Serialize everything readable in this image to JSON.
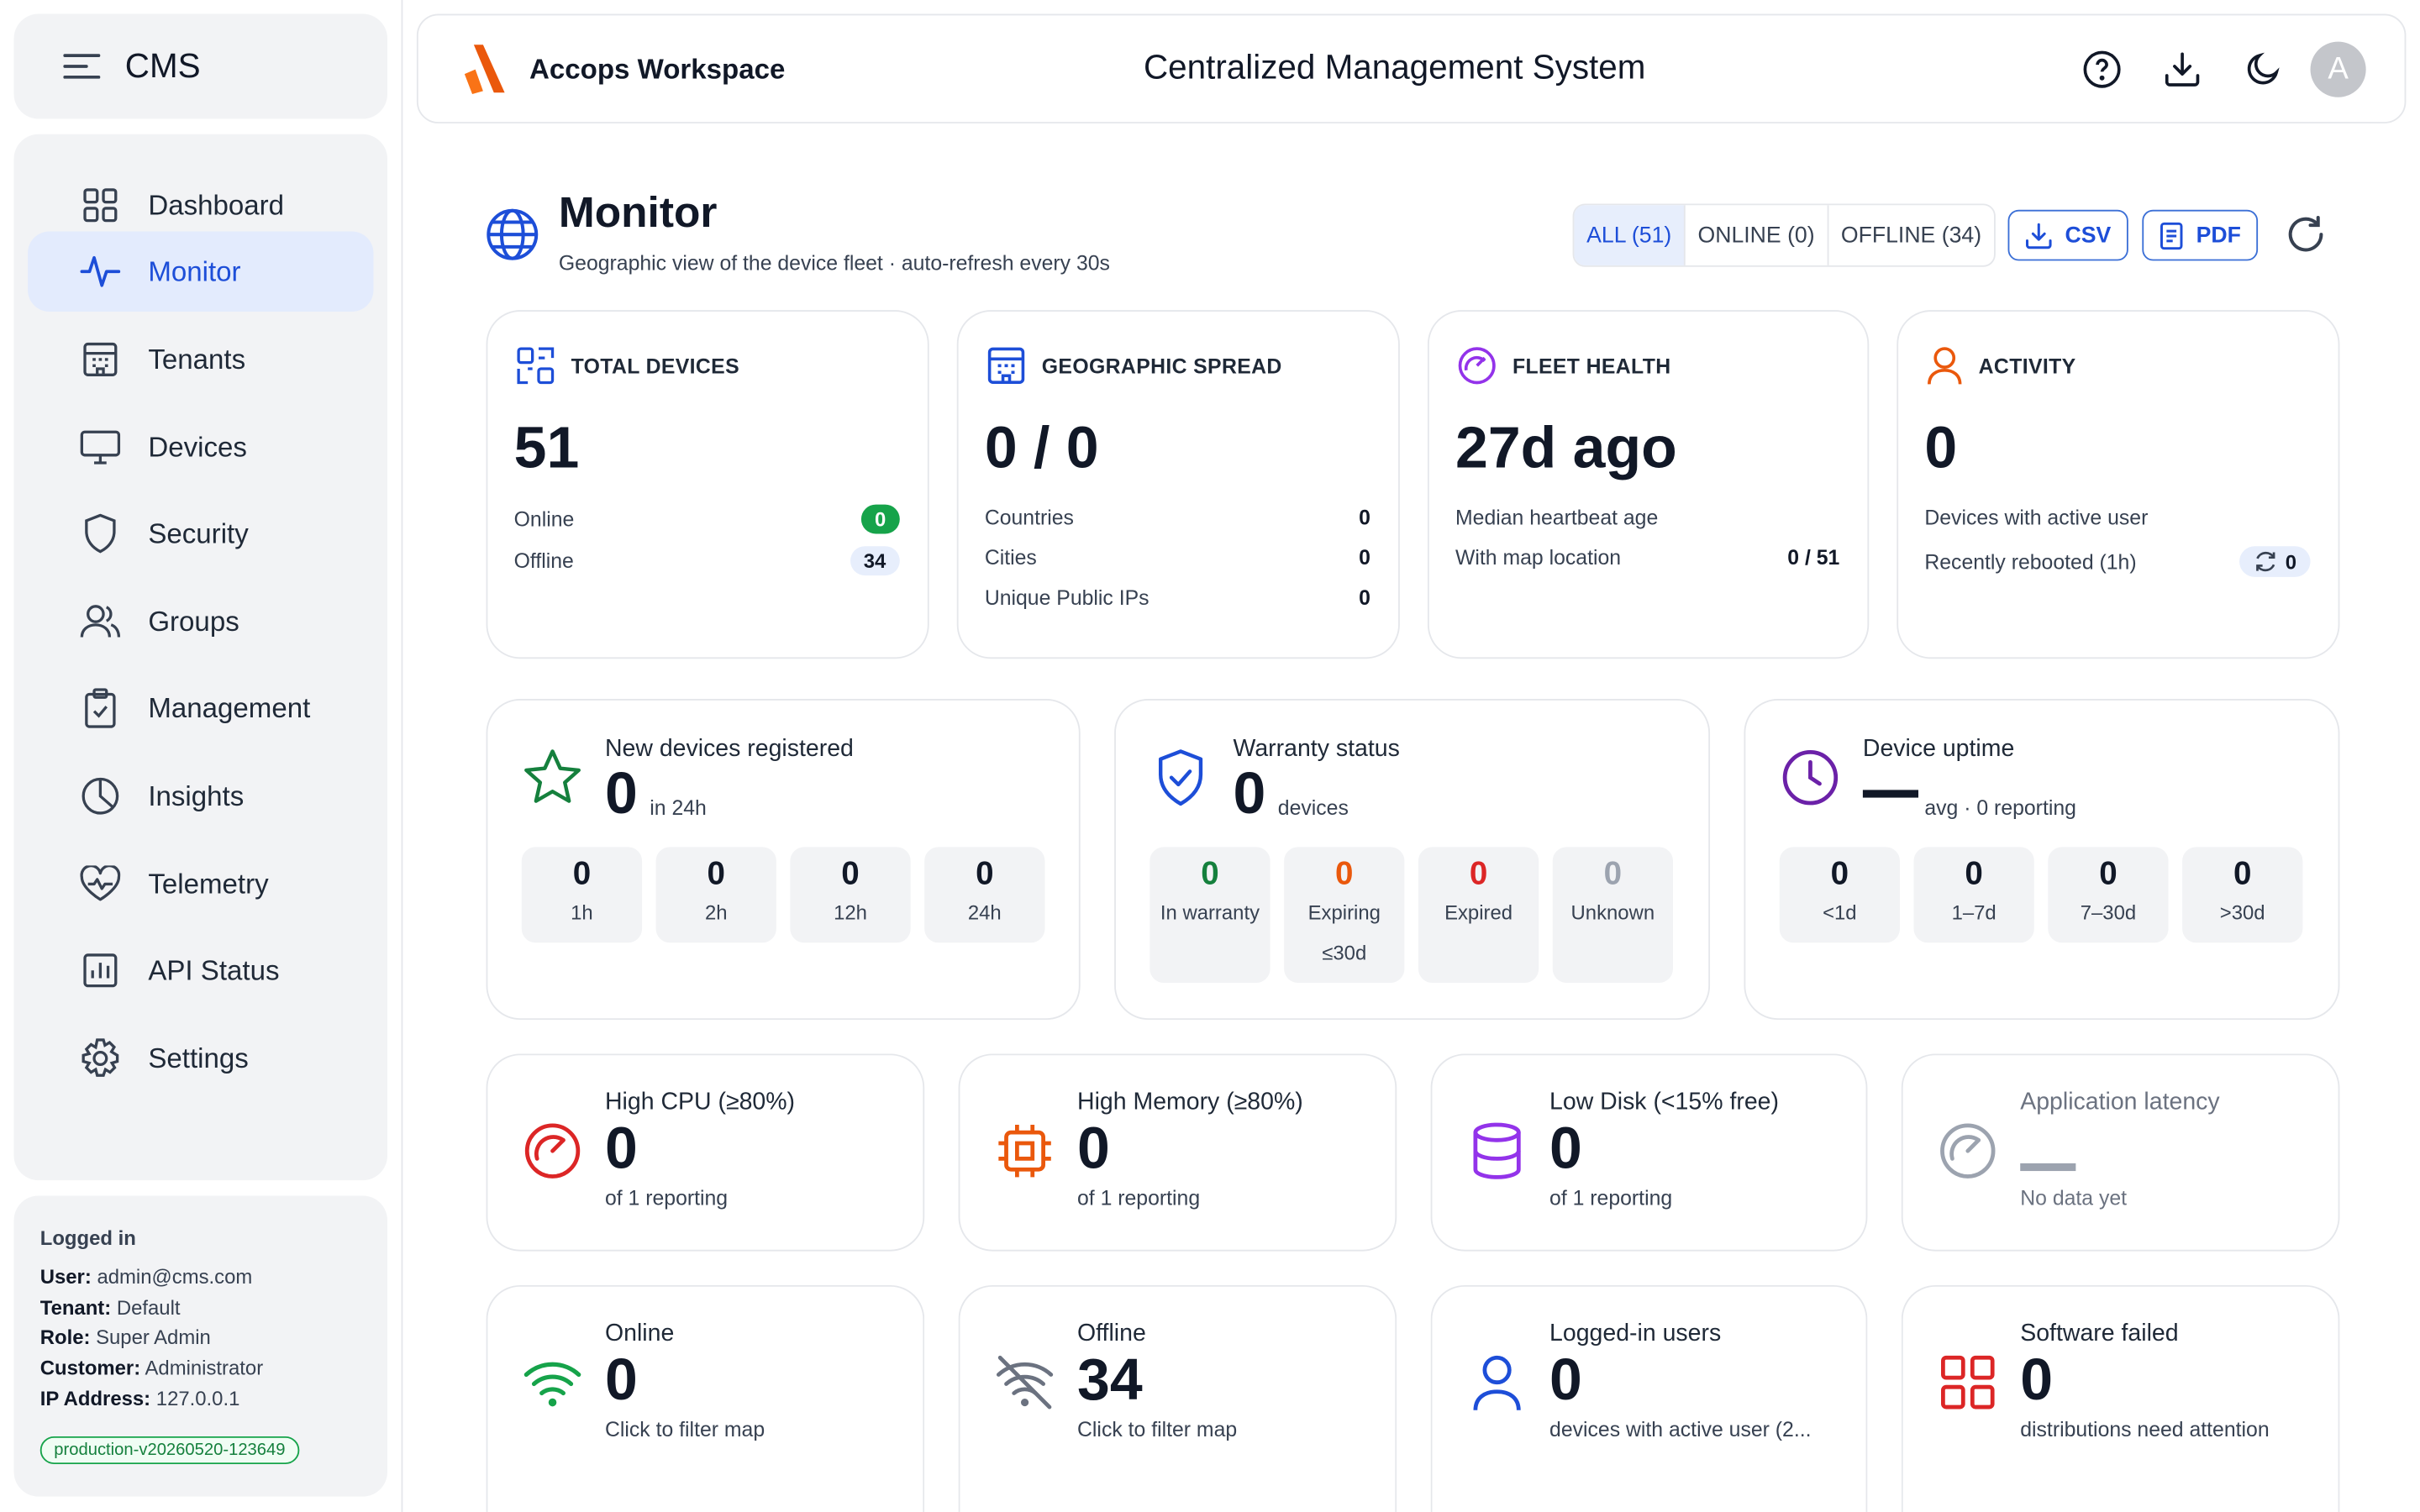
{
  "sidebar": {
    "title": "CMS",
    "items": [
      {
        "label": "Dashboard",
        "icon": "dashboard-icon"
      },
      {
        "label": "Monitor",
        "icon": "activity-icon",
        "active": true
      },
      {
        "label": "Tenants",
        "icon": "building-icon"
      },
      {
        "label": "Devices",
        "icon": "monitor-icon"
      },
      {
        "label": "Security",
        "icon": "shield-icon"
      },
      {
        "label": "Groups",
        "icon": "users-icon"
      },
      {
        "label": "Management",
        "icon": "clipboard-icon"
      },
      {
        "label": "Insights",
        "icon": "pie-chart-icon"
      },
      {
        "label": "Telemetry",
        "icon": "heart-pulse-icon"
      },
      {
        "label": "API Status",
        "icon": "bar-chart-icon"
      },
      {
        "label": "Settings",
        "icon": "gear-icon"
      }
    ],
    "user": {
      "heading": "Logged in",
      "user_label": "User:",
      "user": "admin@cms.com",
      "tenant_label": "Tenant:",
      "tenant": "Default",
      "role_label": "Role:",
      "role": "Super Admin",
      "customer_label": "Customer:",
      "customer": "Administrator",
      "ip_label": "IP Address:",
      "ip": "127.0.0.1",
      "version": "production-v20260520-123649"
    }
  },
  "header": {
    "brand": "Accops Workspace",
    "title": "Centralized Management System",
    "avatar": "A"
  },
  "monitor": {
    "title": "Monitor",
    "subtitle": "Geographic view of the device fleet · auto-refresh every 30s",
    "filters": [
      "ALL (51)",
      "ONLINE (0)",
      "OFFLINE (34)"
    ],
    "csv": "CSV",
    "pdf": "PDF"
  },
  "kpis": {
    "total": {
      "label": "TOTAL DEVICES",
      "value": "51",
      "online_label": "Online",
      "online": "0",
      "offline_label": "Offline",
      "offline": "34"
    },
    "geo": {
      "label": "GEOGRAPHIC SPREAD",
      "value": "0 / 0",
      "countries_label": "Countries",
      "countries": "0",
      "cities_label": "Cities",
      "cities": "0",
      "ips_label": "Unique Public IPs",
      "ips": "0"
    },
    "health": {
      "label": "FLEET HEALTH",
      "value": "27d ago",
      "median_label": "Median heartbeat age",
      "map_label": "With map location",
      "map": "0 / 51"
    },
    "activity": {
      "label": "ACTIVITY",
      "value": "0",
      "active_label": "Devices with active user",
      "rebooted_label": "Recently rebooted (1h)",
      "rebooted": "0"
    }
  },
  "new_devices": {
    "title": "New devices registered",
    "value": "0",
    "suffix": "in 24h",
    "tiles": [
      {
        "v": "0",
        "l": "1h"
      },
      {
        "v": "0",
        "l": "2h"
      },
      {
        "v": "0",
        "l": "12h"
      },
      {
        "v": "0",
        "l": "24h"
      }
    ]
  },
  "warranty": {
    "title": "Warranty status",
    "value": "0",
    "suffix": "devices",
    "tiles": [
      {
        "v": "0",
        "l": "In warranty",
        "color": "#15803d"
      },
      {
        "v": "0",
        "l": "Expiring",
        "l2": "≤30d",
        "color": "#ea580c"
      },
      {
        "v": "0",
        "l": "Expired",
        "color": "#dc2626"
      },
      {
        "v": "0",
        "l": "Unknown",
        "color": "#9ca3af"
      }
    ]
  },
  "uptime": {
    "title": "Device uptime",
    "suffix": "avg · 0 reporting",
    "tiles": [
      {
        "v": "0",
        "l": "<1d"
      },
      {
        "v": "0",
        "l": "1–7d"
      },
      {
        "v": "0",
        "l": "7–30d"
      },
      {
        "v": "0",
        "l": ">30d"
      }
    ]
  },
  "resources": [
    {
      "title": "High CPU (≥80%)",
      "value": "0",
      "sub": "of 1 reporting",
      "icon": "gauge-icon",
      "color": "#dc2626"
    },
    {
      "title": "High Memory (≥80%)",
      "value": "0",
      "sub": "of 1 reporting",
      "icon": "chip-icon",
      "color": "#ea580c"
    },
    {
      "title": "Low Disk (<15% free)",
      "value": "0",
      "sub": "of 1 reporting",
      "icon": "database-icon",
      "color": "#9333ea"
    },
    {
      "title": "Application latency",
      "sub": "No data yet",
      "icon": "gauge-icon",
      "color": "#9ca3af"
    }
  ],
  "status": [
    {
      "title": "Online",
      "value": "0",
      "sub": "Click to filter map",
      "icon": "wifi-icon",
      "color": "#16a34a"
    },
    {
      "title": "Offline",
      "value": "34",
      "sub": "Click to filter map",
      "icon": "wifi-off-icon",
      "color": "#6b7280"
    },
    {
      "title": "Logged-in users",
      "value": "0",
      "sub": "devices with active user (2...",
      "icon": "user-icon",
      "color": "#1d4ed8"
    },
    {
      "title": "Software failed",
      "value": "0",
      "sub": "distributions need attention",
      "icon": "grid-icon",
      "color": "#dc2626"
    }
  ]
}
